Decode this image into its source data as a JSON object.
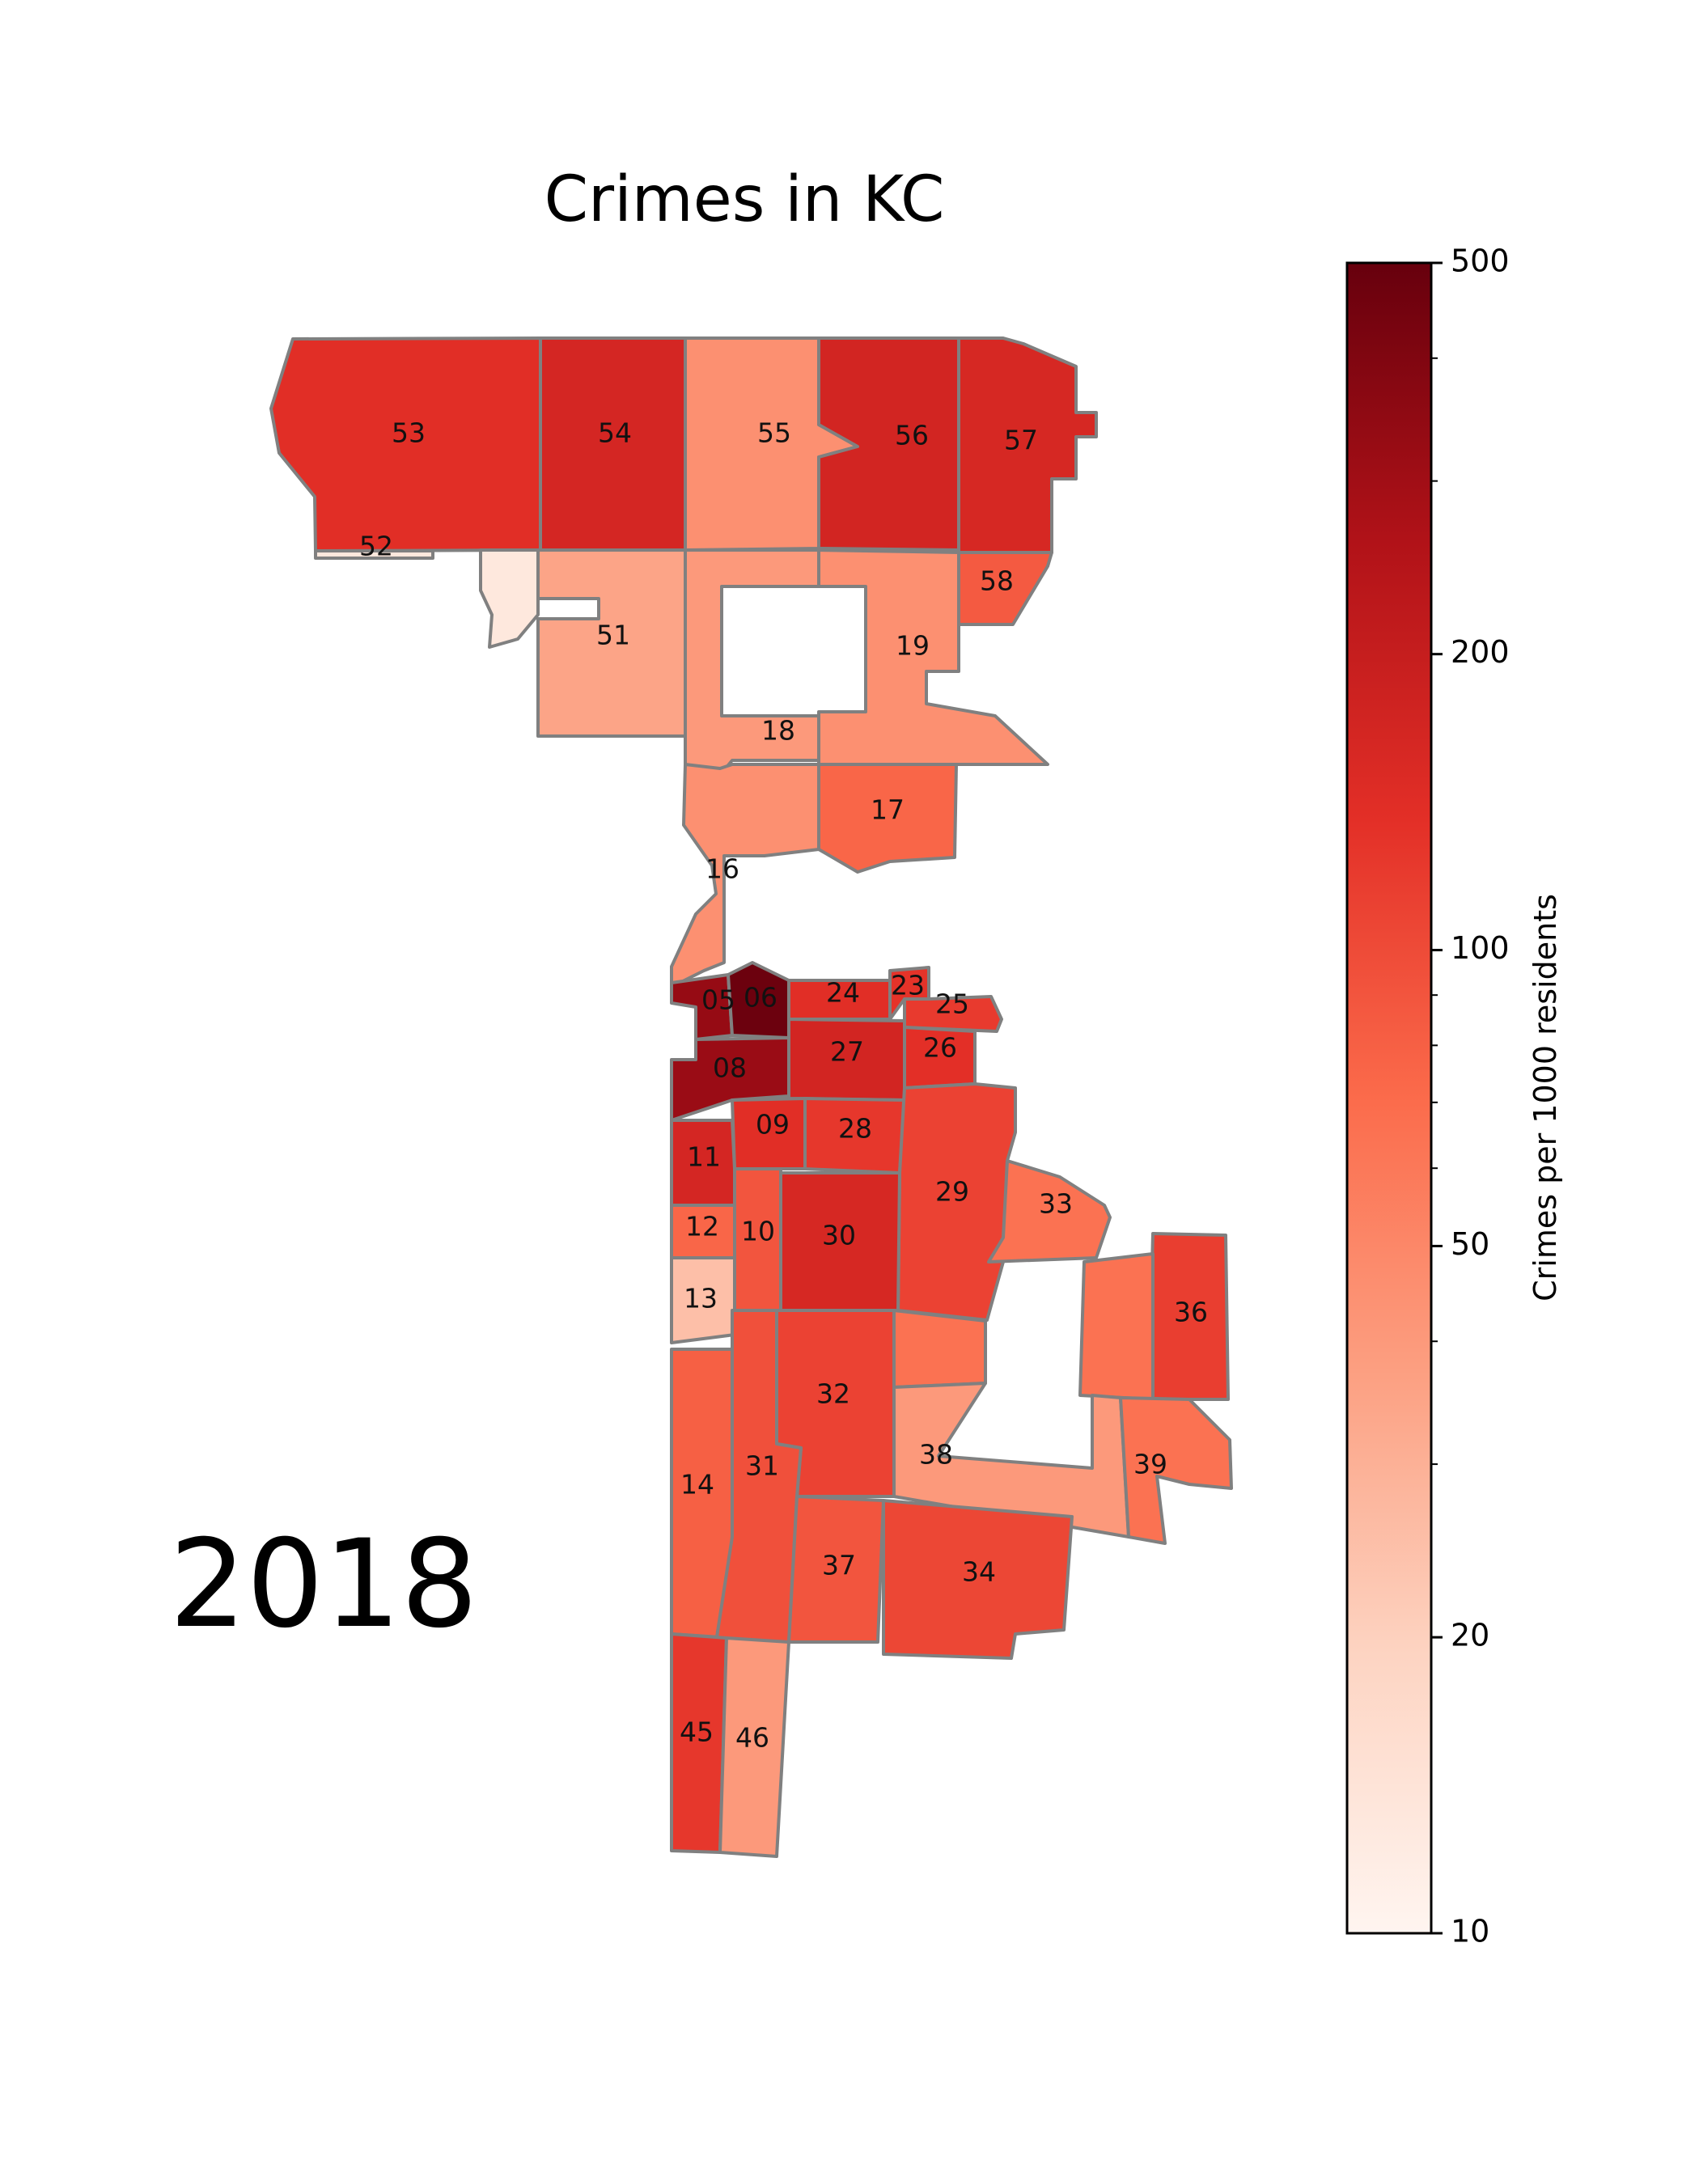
{
  "title": "Crimes in KC",
  "year": "2018",
  "colorbar": {
    "label": "Crimes per 1000 residents",
    "scale": "log",
    "min": 10,
    "max": 500,
    "ticks": [
      "500",
      "200",
      "100",
      "50",
      "20",
      "10"
    ],
    "colors": [
      "#fff5f0",
      "#fdd4c2",
      "#fca082",
      "#fb6b4b",
      "#e32f27",
      "#b11218",
      "#67000d"
    ]
  },
  "chart_data": {
    "type": "choropleth",
    "title": "Crimes in KC",
    "value_label": "Crimes per 1000 residents",
    "scale": "log",
    "range": [
      10,
      500
    ],
    "districts": [
      {
        "id": "53",
        "value": 140
      },
      {
        "id": "54",
        "value": 165
      },
      {
        "id": "55",
        "value": 45
      },
      {
        "id": "56",
        "value": 170
      },
      {
        "id": "57",
        "value": 160
      },
      {
        "id": "52",
        "value": 13
      },
      {
        "id": "51",
        "value": 35
      },
      {
        "id": "58",
        "value": 85
      },
      {
        "id": "19",
        "value": 45
      },
      {
        "id": "18",
        "value": 40
      },
      {
        "id": "17",
        "value": 75
      },
      {
        "id": "16",
        "value": 45
      },
      {
        "id": "05",
        "value": 330
      },
      {
        "id": "06",
        "value": 480
      },
      {
        "id": "08",
        "value": 320
      },
      {
        "id": "24",
        "value": 140
      },
      {
        "id": "23",
        "value": 130
      },
      {
        "id": "25",
        "value": 120
      },
      {
        "id": "27",
        "value": 170
      },
      {
        "id": "26",
        "value": 135
      },
      {
        "id": "09",
        "value": 140
      },
      {
        "id": "28",
        "value": 125
      },
      {
        "id": "11",
        "value": 165
      },
      {
        "id": "29",
        "value": 110
      },
      {
        "id": "33",
        "value": 65
      },
      {
        "id": "12",
        "value": 75
      },
      {
        "id": "10",
        "value": 90
      },
      {
        "id": "30",
        "value": 160
      },
      {
        "id": "13",
        "value": 25
      },
      {
        "id": "36",
        "value": 115
      },
      {
        "id": "32",
        "value": 110
      },
      {
        "id": "38",
        "value": 40
      },
      {
        "id": "39",
        "value": 65
      },
      {
        "id": "14",
        "value": 80
      },
      {
        "id": "31",
        "value": 95
      },
      {
        "id": "37",
        "value": 90
      },
      {
        "id": "34",
        "value": 105
      },
      {
        "id": "45",
        "value": 125
      },
      {
        "id": "46",
        "value": 40
      }
    ]
  }
}
